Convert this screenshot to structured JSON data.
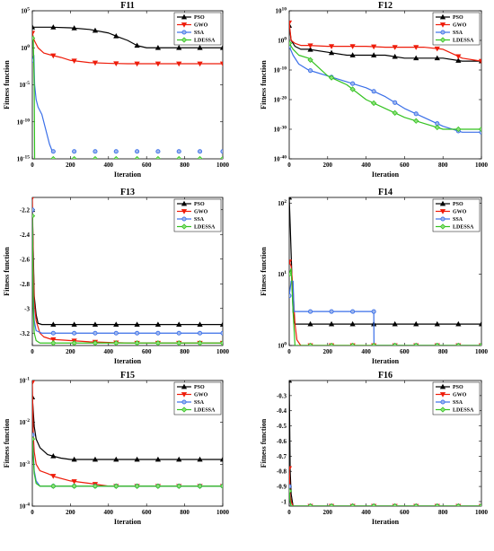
{
  "figure": {
    "series_styles": [
      {
        "name": "PSO",
        "color": "#000000",
        "marker": "triangle-up"
      },
      {
        "name": "GWO",
        "color": "#ee1c0a",
        "marker": "triangle-down"
      },
      {
        "name": "SSA",
        "color": "#3a6fe8",
        "marker": "circle"
      },
      {
        "name": "LDESSA",
        "color": "#33c21f",
        "marker": "diamond"
      }
    ]
  },
  "chart_data": [
    {
      "type": "line",
      "title": "F11",
      "xlabel": "Iteration",
      "ylabel": "Fitness function",
      "xlim": [
        0,
        1000
      ],
      "xticks": [
        0,
        200,
        400,
        600,
        800,
        1000
      ],
      "yscale": "log",
      "ylim": [
        1e-15,
        100000.0
      ],
      "yticks": [
        1e-15,
        1e-10,
        1e-05,
        1,
        100000.0
      ],
      "ytick_labels": [
        "10^-15",
        "10^-10",
        "10^-5",
        "10^0",
        "10^5"
      ],
      "legend": "top-right",
      "series": [
        {
          "name": "PSO",
          "x": [
            0,
            100,
            200,
            300,
            400,
            450,
            500,
            550,
            600,
            650,
            700,
            800,
            900,
            1000
          ],
          "y": [
            600,
            600,
            500,
            300,
            100,
            30,
            10,
            2,
            1,
            1,
            1,
            1,
            1,
            1
          ]
        },
        {
          "name": "GWO",
          "x": [
            0,
            10,
            30,
            60,
            100,
            150,
            200,
            300,
            400,
            500,
            600,
            700,
            800,
            1000
          ],
          "y": [
            100,
            10,
            1,
            0.2,
            0.1,
            0.05,
            0.02,
            0.01,
            0.008,
            0.007,
            0.007,
            0.007,
            0.007,
            0.007
          ]
        },
        {
          "name": "SSA",
          "x": [
            0,
            8,
            12,
            20,
            30,
            50,
            70,
            90,
            105
          ],
          "y": [
            0.02,
            0.1,
            1e-05,
            1e-07,
            1e-08,
            1e-09,
            1e-11,
            1e-13,
            1e-14
          ]
        },
        {
          "name": "LDESSA",
          "x": [
            0,
            5,
            10,
            12
          ],
          "y": [
            20,
            10,
            1e-05,
            1e-15
          ]
        }
      ]
    },
    {
      "type": "line",
      "title": "F12",
      "xlabel": "Iteration",
      "ylabel": "Fitness function",
      "xlim": [
        0,
        1000
      ],
      "xticks": [
        0,
        200,
        400,
        600,
        800,
        1000
      ],
      "yscale": "log",
      "ylim": [
        1e-40,
        10000000000.0
      ],
      "yticks": [
        1e-40,
        1e-30,
        1e-20,
        1e-10,
        1,
        10000000000.0
      ],
      "ytick_labels": [
        "10^-40",
        "10^-30",
        "10^-20",
        "10^-10",
        "10^0",
        "10^10"
      ],
      "legend": "top-right",
      "series": [
        {
          "name": "PSO",
          "x": [
            0,
            10,
            30,
            60,
            100,
            200,
            300,
            400,
            500,
            600,
            700,
            800,
            900,
            1000
          ],
          "y": [
            100000.0,
            1,
            0.01,
            0.001,
            0.001,
            0.0001,
            1e-05,
            1e-05,
            1e-05,
            1e-06,
            1e-06,
            1e-06,
            1e-07,
            1e-07
          ]
        },
        {
          "name": "GWO",
          "x": [
            0,
            10,
            30,
            60,
            100,
            200,
            300,
            400,
            500,
            600,
            700,
            800,
            900,
            1000
          ],
          "y": [
            1000000.0,
            1,
            0.1,
            0.02,
            0.02,
            0.01,
            0.01,
            0.01,
            0.005,
            0.005,
            0.005,
            0.001,
            1e-06,
            1e-07
          ]
        },
        {
          "name": "SSA",
          "x": [
            0,
            20,
            50,
            100,
            200,
            300,
            400,
            500,
            600,
            700,
            800,
            900,
            1000
          ],
          "y": [
            0.01,
            1e-05,
            1e-08,
            1e-10,
            1e-12,
            1e-14,
            1e-16,
            1e-19,
            1e-23,
            1e-26,
            1e-29,
            1e-31,
            1e-31
          ]
        },
        {
          "name": "LDESSA",
          "x": [
            0,
            20,
            50,
            100,
            200,
            300,
            400,
            500,
            600,
            700,
            800,
            1000
          ],
          "y": [
            0.1,
            0.001,
            1e-05,
            1e-06,
            1e-12,
            1e-15,
            1e-20,
            1e-23,
            1e-26,
            1e-28,
            1e-30,
            1e-30
          ]
        }
      ]
    },
    {
      "type": "line",
      "title": "F13",
      "xlabel": "Iteration",
      "ylabel": "Fitness function",
      "xlim": [
        0,
        1000
      ],
      "xticks": [
        0,
        200,
        400,
        600,
        800,
        1000
      ],
      "yscale": "linear",
      "ylim": [
        -3.3,
        -2.1
      ],
      "yticks": [
        -3.2,
        -3,
        -2.8,
        -2.6,
        -2.4,
        -2.2
      ],
      "ytick_labels": [
        "-3.2",
        "-3",
        "-2.8",
        "-2.6",
        "-2.4",
        "-2.2"
      ],
      "legend": "top-right",
      "series": [
        {
          "name": "PSO",
          "x": [
            0,
            10,
            20,
            30,
            50,
            100,
            200,
            400,
            600,
            800,
            1000
          ],
          "y": [
            -2.2,
            -2.9,
            -3.05,
            -3.12,
            -3.13,
            -3.13,
            -3.13,
            -3.13,
            -3.13,
            -3.13,
            -3.13
          ]
        },
        {
          "name": "GWO",
          "x": [
            0,
            5,
            10,
            20,
            40,
            60,
            100,
            200,
            300,
            500,
            1000
          ],
          "y": [
            -2.1,
            -2.6,
            -2.95,
            -3.1,
            -3.2,
            -3.23,
            -3.25,
            -3.26,
            -3.27,
            -3.28,
            -3.28
          ]
        },
        {
          "name": "SSA",
          "x": [
            0,
            5,
            10,
            20,
            50,
            100,
            1000
          ],
          "y": [
            -2.2,
            -2.9,
            -3.1,
            -3.18,
            -3.2,
            -3.2,
            -3.2
          ]
        },
        {
          "name": "LDESSA",
          "x": [
            0,
            5,
            10,
            20,
            40,
            100,
            1000
          ],
          "y": [
            -2.25,
            -3.0,
            -3.2,
            -3.26,
            -3.28,
            -3.28,
            -3.28
          ]
        }
      ]
    },
    {
      "type": "line",
      "title": "F14",
      "xlabel": "Iteration",
      "ylabel": "Fitness function",
      "xlim": [
        0,
        1000
      ],
      "xticks": [
        0,
        200,
        400,
        600,
        800,
        1000
      ],
      "yscale": "log",
      "ylim": [
        1,
        120
      ],
      "yticks": [
        1,
        10,
        100
      ],
      "ytick_labels": [
        "10^0",
        "10^1",
        "10^2"
      ],
      "legend": "top-right",
      "series": [
        {
          "name": "PSO",
          "x": [
            0,
            5,
            20,
            30,
            40,
            1000
          ],
          "y": [
            120,
            50,
            3,
            2,
            2,
            2
          ]
        },
        {
          "name": "GWO",
          "x": [
            0,
            10,
            20,
            30,
            40,
            60,
            1000
          ],
          "y": [
            15,
            13,
            6,
            2,
            1.2,
            1,
            1
          ]
        },
        {
          "name": "SSA",
          "x": [
            0,
            10,
            20,
            25,
            440,
            441,
            1000
          ],
          "y": [
            5,
            8,
            8,
            3,
            3,
            1,
            1
          ]
        },
        {
          "name": "LDESSA",
          "x": [
            0,
            10,
            20,
            30,
            1000
          ],
          "y": [
            10,
            12,
            3,
            1,
            1
          ]
        }
      ]
    },
    {
      "type": "line",
      "title": "F15",
      "xlabel": "Iteration",
      "ylabel": "Fitness function",
      "xlim": [
        0,
        1000
      ],
      "xticks": [
        0,
        200,
        400,
        600,
        800,
        1000
      ],
      "yscale": "log",
      "ylim": [
        0.0001,
        0.1
      ],
      "yticks": [
        0.0001,
        0.001,
        0.01,
        0.1
      ],
      "ytick_labels": [
        "10^-4",
        "10^-3",
        "10^-2",
        "10^-1"
      ],
      "legend": "top-right",
      "series": [
        {
          "name": "PSO",
          "x": [
            0,
            10,
            20,
            40,
            80,
            150,
            200,
            300,
            1000
          ],
          "y": [
            0.04,
            0.008,
            0.004,
            0.0025,
            0.0017,
            0.0014,
            0.0013,
            0.0013,
            0.0013
          ]
        },
        {
          "name": "GWO",
          "x": [
            0,
            5,
            10,
            20,
            40,
            80,
            120,
            200,
            300,
            400,
            1000
          ],
          "y": [
            0.09,
            0.005,
            0.002,
            0.001,
            0.0007,
            0.0006,
            0.0005,
            0.0004,
            0.00035,
            0.0003,
            0.0003
          ]
        },
        {
          "name": "SSA",
          "x": [
            0,
            5,
            10,
            20,
            40,
            1000
          ],
          "y": [
            0.005,
            0.002,
            0.0007,
            0.0004,
            0.0003,
            0.0003
          ]
        },
        {
          "name": "LDESSA",
          "x": [
            0,
            5,
            10,
            20,
            40,
            1000
          ],
          "y": [
            0.004,
            0.0015,
            0.0006,
            0.00035,
            0.0003,
            0.0003
          ]
        }
      ]
    },
    {
      "type": "line",
      "title": "F16",
      "xlabel": "Iteration",
      "ylabel": "Fitness function",
      "xlim": [
        0,
        1000
      ],
      "xticks": [
        0,
        200,
        400,
        600,
        800,
        1000
      ],
      "yscale": "linear",
      "ylim": [
        -1.03,
        -0.2
      ],
      "yticks": [
        -1,
        -0.9,
        -0.8,
        -0.7,
        -0.6,
        -0.5,
        -0.4,
        -0.3
      ],
      "ytick_labels": [
        "-1",
        "-0.9",
        "-0.8",
        "-0.7",
        "-0.6",
        "-0.5",
        "-0.4",
        "-0.3"
      ],
      "legend": "top-right",
      "series": [
        {
          "name": "PSO",
          "x": [
            0,
            5,
            10,
            20,
            1000
          ],
          "y": [
            -0.2,
            -0.8,
            -0.95,
            -1.03,
            -1.03
          ]
        },
        {
          "name": "GWO",
          "x": [
            0,
            5,
            10,
            20,
            1000
          ],
          "y": [
            -0.78,
            -0.95,
            -1.0,
            -1.03,
            -1.03
          ]
        },
        {
          "name": "SSA",
          "x": [
            0,
            5,
            10,
            1000
          ],
          "y": [
            -0.9,
            -1.0,
            -1.03,
            -1.03
          ]
        },
        {
          "name": "LDESSA",
          "x": [
            0,
            5,
            10,
            1000
          ],
          "y": [
            -0.93,
            -1.0,
            -1.03,
            -1.03
          ]
        }
      ]
    }
  ]
}
